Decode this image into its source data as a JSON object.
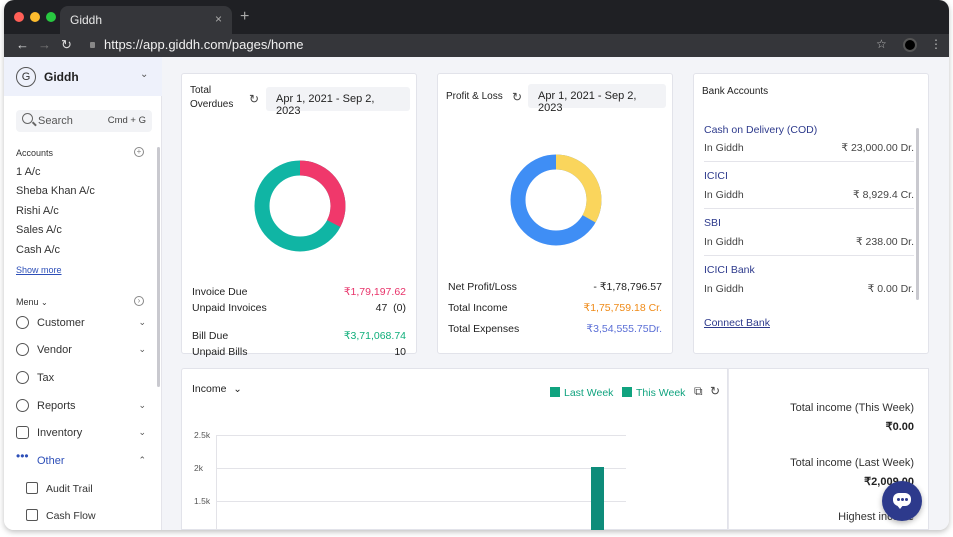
{
  "browser": {
    "tab_title": "Giddh",
    "tab_close": "×",
    "new_tab": "+",
    "url": "https://app.giddh.com/pages/home",
    "dot_colors": [
      "#ff5f57",
      "#febc2e",
      "#28c840"
    ]
  },
  "sidebar": {
    "company_initial": "G",
    "company_name": "Giddh",
    "search_placeholder": "Search",
    "search_shortcut": "Cmd + G",
    "accounts_title": "Accounts",
    "accounts": [
      "1 A/c",
      "Sheba Khan A/c",
      "Rishi A/c",
      "Sales A/c",
      "Cash A/c"
    ],
    "show_more": "Show more",
    "menu_title": "Menu",
    "menu": [
      {
        "label": "Customer",
        "icon": "customer-icon"
      },
      {
        "label": "Vendor",
        "icon": "vendor-icon"
      },
      {
        "label": "Tax",
        "icon": "tax-icon"
      },
      {
        "label": "Reports",
        "icon": "reports-icon"
      },
      {
        "label": "Inventory",
        "icon": "inventory-icon"
      },
      {
        "label": "Other",
        "icon": "dots-icon"
      }
    ],
    "submenu": [
      {
        "label": "Audit Trail",
        "icon": "audit-trail-icon"
      },
      {
        "label": "Cash Flow",
        "icon": "cash-flow-icon"
      }
    ]
  },
  "overdues": {
    "title_line1": "Total",
    "title_line2": "Overdues",
    "date_range": "Apr 1, 2021 - Sep 2, 2023",
    "invoice_due_label": "Invoice Due",
    "invoice_due_value": "₹1,79,197.62",
    "unpaid_invoices_label": "Unpaid Invoices",
    "unpaid_invoices_value": "47  (0)",
    "bill_due_label": "Bill Due",
    "bill_due_value": "₹3,71,068.74",
    "unpaid_bills_label": "Unpaid Bills",
    "unpaid_bills_value": "10",
    "donut": {
      "pink_fraction": 0.326,
      "teal_fraction": 0.674,
      "pink": "#f0386b",
      "teal": "#10b5a4"
    }
  },
  "profit_loss": {
    "title": "Profit & Loss",
    "date_range": "Apr 1, 2021 - Sep 2, 2023",
    "net_label": "Net Profit/Loss",
    "net_value": "- ₹1,78,796.57",
    "income_label": "Total Income",
    "income_value": "₹1,75,759.18 Cr.",
    "expenses_label": "Total Expenses",
    "expenses_value": "₹3,54,555.75Dr.",
    "donut": {
      "yellow_fraction": 0.332,
      "blue_fraction": 0.668,
      "yellow": "#fad55c",
      "blue": "#3f8ef5"
    }
  },
  "bank": {
    "title": "Bank Accounts",
    "accounts": [
      {
        "name": "Cash on Delivery (COD)",
        "source": "In Giddh",
        "amount": "₹ 23,000.00 Dr."
      },
      {
        "name": "ICICI",
        "source": "In Giddh",
        "amount": "₹ 8,929.4 Cr."
      },
      {
        "name": "SBI",
        "source": "In Giddh",
        "amount": "₹ 238.00 Dr."
      },
      {
        "name": "ICICI Bank",
        "source": "In Giddh",
        "amount": "₹ 0.00 Dr."
      }
    ],
    "connect": "Connect Bank"
  },
  "income": {
    "title": "Income",
    "legend_last": "Last Week",
    "legend_this": "This Week",
    "yticks": [
      "2.5k",
      "2k",
      "1.5k"
    ],
    "total_this_week_label": "Total income (This Week)",
    "total_this_week_value": "₹0.00",
    "total_last_week_label": "Total income (Last Week)",
    "total_last_week_value": "₹2,009.00",
    "highest_label": "Highest income"
  },
  "chart_data": {
    "type": "bar",
    "series": [
      {
        "name": "Last Week",
        "values": [
          0,
          0,
          0,
          0,
          0,
          0,
          2009
        ]
      },
      {
        "name": "This Week",
        "values": [
          0,
          0,
          0,
          0,
          0,
          0,
          0
        ]
      }
    ],
    "yticks": [
      "2.5k",
      "2k",
      "1.5k"
    ],
    "ylim": [
      0,
      2500
    ],
    "grid": true,
    "legend": "top-right"
  }
}
